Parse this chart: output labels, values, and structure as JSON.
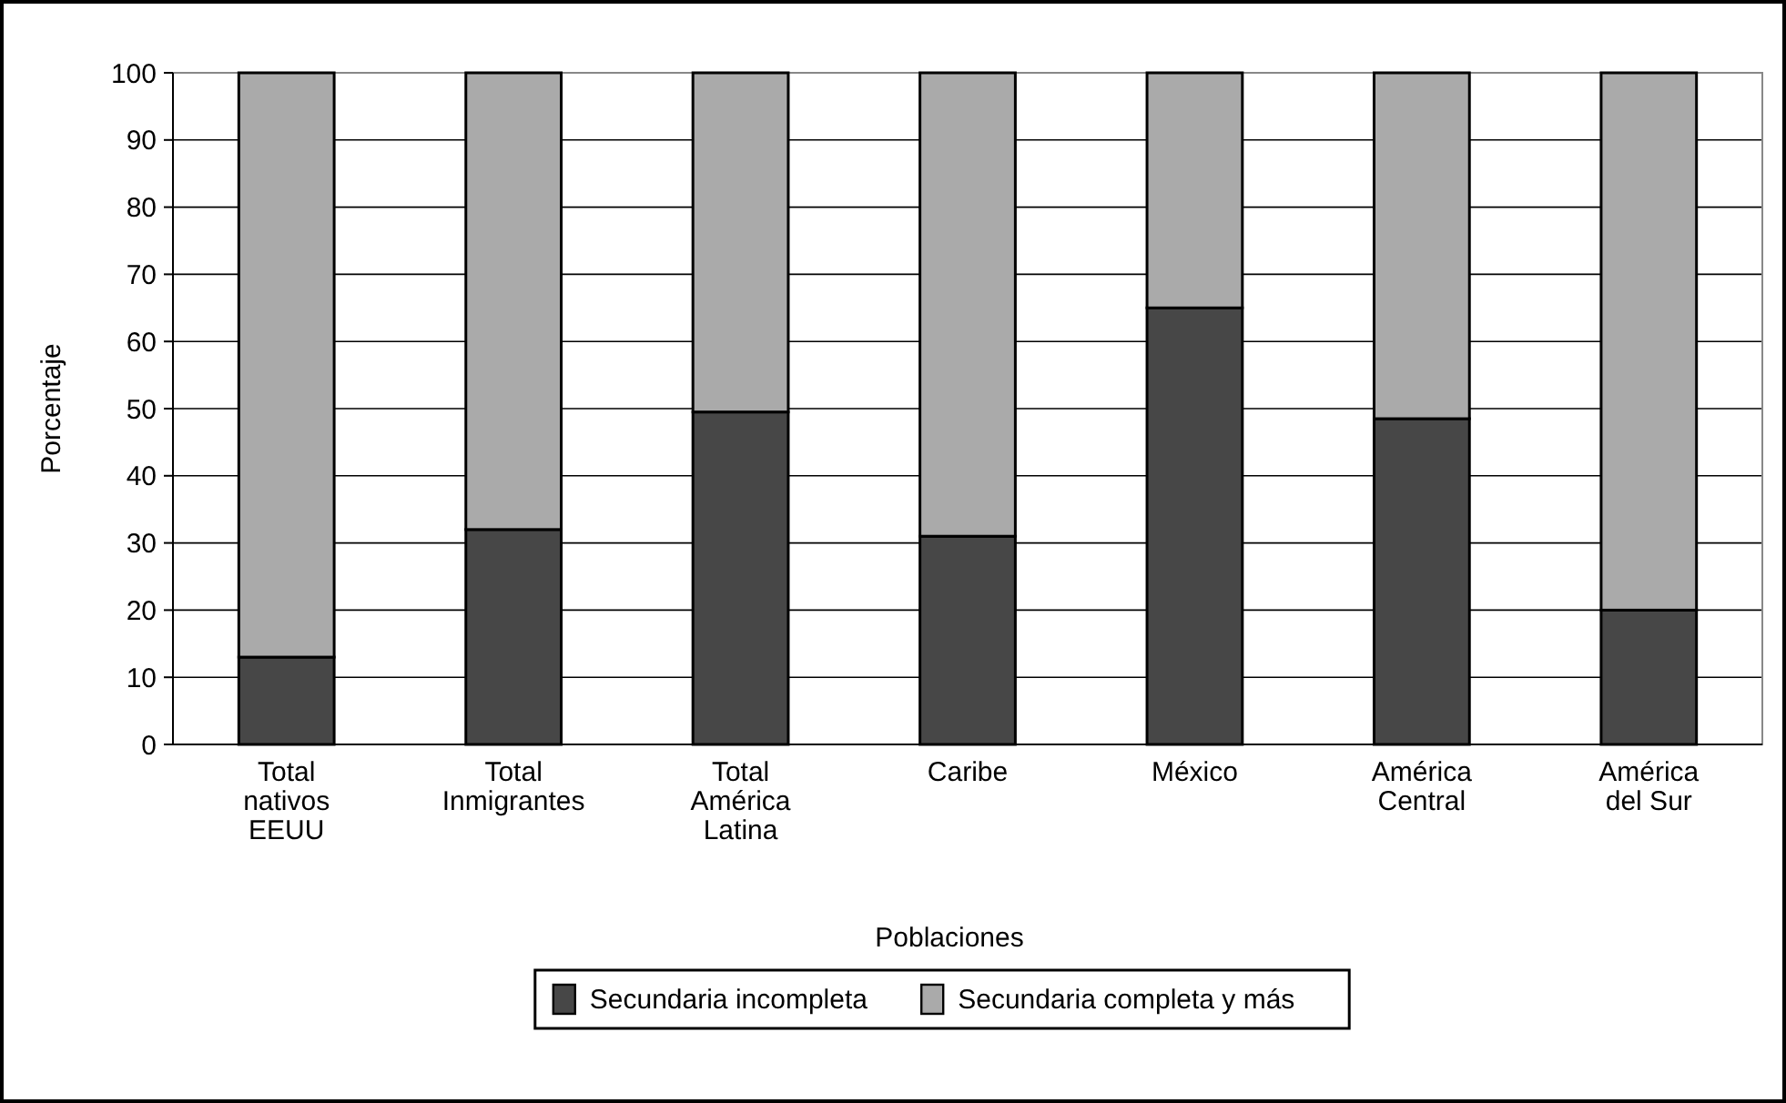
{
  "chart_data": {
    "type": "bar",
    "stacked": true,
    "xlabel": "Poblaciones",
    "ylabel": "Porcentaje",
    "categories": [
      "Total nativos EEUU",
      "Total Inmigrantes",
      "Total América Latina",
      "Caribe",
      "México",
      "América Central",
      "América del Sur"
    ],
    "series": [
      {
        "name": "Secundaria incompleta",
        "color": "#474747",
        "values": [
          13,
          32,
          49.5,
          31,
          65,
          48.5,
          20
        ]
      },
      {
        "name": "Secundaria completa y más",
        "color": "#aaaaaa",
        "values": [
          87,
          68,
          50.5,
          69,
          35,
          51.5,
          80
        ]
      }
    ],
    "ylim": [
      0,
      100
    ],
    "yticks": [
      0,
      10,
      20,
      30,
      40,
      50,
      60,
      70,
      80,
      90,
      100
    ],
    "grid": "y",
    "legend": "bottom"
  }
}
